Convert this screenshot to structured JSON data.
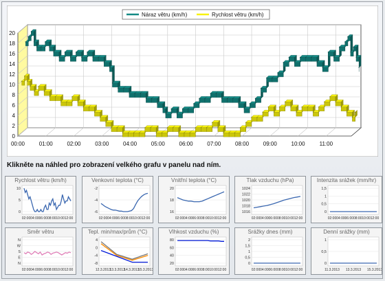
{
  "chart_data": [
    {
      "type": "line",
      "style": "3d-ribbon",
      "legend_placement": "top",
      "grid": true,
      "x_ticks": [
        "00:00",
        "01:00",
        "02:00",
        "03:00",
        "04:00",
        "05:00",
        "06:00",
        "07:00",
        "08:00",
        "09:00",
        "10:00",
        "11:00"
      ],
      "y_ticks": [
        "0",
        "2",
        "4",
        "6",
        "8",
        "10",
        "12",
        "14",
        "16",
        "18",
        "20"
      ],
      "ylim": [
        0,
        20
      ],
      "xlim": [
        0,
        11.9
      ],
      "series": [
        {
          "name": "Náraz větru (km/h)",
          "color": "#148a85",
          "points": [
            [
              0,
              17
            ],
            [
              0.1,
              18
            ],
            [
              0.2,
              19
            ],
            [
              0.3,
              17
            ],
            [
              0.4,
              16
            ],
            [
              0.55,
              16
            ],
            [
              0.7,
              17
            ],
            [
              0.85,
              16
            ],
            [
              1.0,
              15
            ],
            [
              1.2,
              14
            ],
            [
              1.4,
              15
            ],
            [
              1.6,
              14
            ],
            [
              1.8,
              15
            ],
            [
              2.0,
              14
            ],
            [
              2.2,
              15
            ],
            [
              2.4,
              14
            ],
            [
              2.6,
              14
            ],
            [
              2.8,
              13
            ],
            [
              3.0,
              12
            ],
            [
              3.1,
              9
            ],
            [
              3.3,
              8
            ],
            [
              3.5,
              8
            ],
            [
              3.7,
              7
            ],
            [
              3.9,
              7
            ],
            [
              4.1,
              7
            ],
            [
              4.3,
              6
            ],
            [
              4.5,
              6
            ],
            [
              4.7,
              5
            ],
            [
              4.9,
              4
            ],
            [
              5.0,
              3
            ],
            [
              5.2,
              4
            ],
            [
              5.4,
              3
            ],
            [
              5.6,
              4
            ],
            [
              5.8,
              4
            ],
            [
              6.0,
              5
            ],
            [
              6.2,
              6
            ],
            [
              6.4,
              6
            ],
            [
              6.6,
              7
            ],
            [
              6.8,
              7
            ],
            [
              7.0,
              6
            ],
            [
              7.2,
              6
            ],
            [
              7.4,
              6
            ],
            [
              7.6,
              5
            ],
            [
              7.8,
              4
            ],
            [
              8.0,
              5
            ],
            [
              8.2,
              6
            ],
            [
              8.4,
              8
            ],
            [
              8.6,
              10
            ],
            [
              8.8,
              10
            ],
            [
              9.0,
              11
            ],
            [
              9.2,
              13
            ],
            [
              9.4,
              14
            ],
            [
              9.6,
              13
            ],
            [
              9.8,
              14
            ],
            [
              10.0,
              14
            ],
            [
              10.2,
              14
            ],
            [
              10.4,
              13
            ],
            [
              10.6,
              12
            ],
            [
              10.8,
              15
            ],
            [
              11.0,
              14
            ],
            [
              11.2,
              16
            ],
            [
              11.4,
              17
            ],
            [
              11.5,
              18
            ],
            [
              11.6,
              15
            ],
            [
              11.7,
              16
            ],
            [
              11.8,
              14
            ],
            [
              11.9,
              12
            ]
          ]
        },
        {
          "name": "Rychlost větru (km/h)",
          "color": "#f7f20e",
          "points": [
            [
              0,
              10
            ],
            [
              0.1,
              11
            ],
            [
              0.2,
              10
            ],
            [
              0.3,
              9
            ],
            [
              0.45,
              8
            ],
            [
              0.6,
              9
            ],
            [
              0.8,
              8
            ],
            [
              1.0,
              7
            ],
            [
              1.2,
              7
            ],
            [
              1.4,
              6
            ],
            [
              1.6,
              6
            ],
            [
              1.8,
              7
            ],
            [
              2.0,
              6
            ],
            [
              2.2,
              5
            ],
            [
              2.4,
              5
            ],
            [
              2.6,
              4
            ],
            [
              2.8,
              3
            ],
            [
              3.0,
              2
            ],
            [
              3.2,
              1
            ],
            [
              3.4,
              1
            ],
            [
              3.6,
              0
            ],
            [
              3.8,
              0
            ],
            [
              4.0,
              0
            ],
            [
              4.2,
              0
            ],
            [
              4.4,
              1
            ],
            [
              4.6,
              1
            ],
            [
              4.8,
              0
            ],
            [
              5.0,
              0
            ],
            [
              5.2,
              1
            ],
            [
              5.4,
              1
            ],
            [
              5.6,
              0
            ],
            [
              5.8,
              0
            ],
            [
              6.0,
              0
            ],
            [
              6.2,
              1
            ],
            [
              6.4,
              1
            ],
            [
              6.6,
              1
            ],
            [
              6.8,
              2
            ],
            [
              7.0,
              1
            ],
            [
              7.2,
              0
            ],
            [
              7.4,
              0
            ],
            [
              7.6,
              0
            ],
            [
              7.8,
              1
            ],
            [
              8.0,
              2
            ],
            [
              8.2,
              3
            ],
            [
              8.4,
              3
            ],
            [
              8.6,
              4
            ],
            [
              8.8,
              5
            ],
            [
              9.0,
              4
            ],
            [
              9.2,
              5
            ],
            [
              9.4,
              6
            ],
            [
              9.6,
              5
            ],
            [
              9.8,
              4
            ],
            [
              10.0,
              5
            ],
            [
              10.2,
              5
            ],
            [
              10.4,
              4
            ],
            [
              10.6,
              5
            ],
            [
              10.8,
              6
            ],
            [
              11.0,
              7
            ],
            [
              11.2,
              6
            ],
            [
              11.4,
              5
            ],
            [
              11.6,
              4
            ],
            [
              11.8,
              3
            ],
            [
              11.9,
              4
            ]
          ]
        }
      ]
    },
    {
      "type": "line",
      "title": "Rychlost větru (km/h)",
      "y_ticks": [
        "10",
        "5",
        "0"
      ],
      "x_ticks": [
        "02:00",
        "04:00",
        "06:00",
        "08:00",
        "10:00",
        "12:00"
      ],
      "series": [
        {
          "color": "#3a67b0",
          "values": [
            11,
            9,
            10,
            8,
            6,
            7,
            5,
            3,
            1,
            0,
            0,
            1,
            0,
            0,
            1,
            0,
            0,
            2,
            3,
            1,
            1,
            4,
            3,
            5,
            6,
            3,
            4,
            1,
            2,
            3,
            3,
            5,
            8,
            6,
            4,
            5,
            5,
            7,
            6,
            5
          ]
        }
      ]
    },
    {
      "type": "line",
      "title": "Venkovní teplota (°C)",
      "y_ticks": [
        "-2",
        "-4",
        "-6"
      ],
      "x_ticks": [
        "02:00",
        "04:00",
        "06:00",
        "08:00",
        "10:00",
        "12:00"
      ],
      "series": [
        {
          "color": "#3a67b0",
          "values": [
            -5,
            -5.3,
            -5.6,
            -5.8,
            -6,
            -6.2,
            -6.3,
            -6.3,
            -6.4,
            -6.5,
            -6.5,
            -6.6,
            -6.6,
            -6.6,
            -6.5,
            -6.4,
            -6,
            -5.2,
            -4.5,
            -4,
            -3.6,
            -3.3,
            -3.1,
            -3
          ]
        }
      ]
    },
    {
      "type": "line",
      "title": "Vnitřní teplota (°C)",
      "y_ticks": [
        "20",
        "18",
        "16"
      ],
      "x_ticks": [
        "02:00",
        "04:00",
        "06:00",
        "08:00",
        "10:00",
        "12:00"
      ],
      "series": [
        {
          "color": "#3a67b0",
          "values": [
            18.4,
            18.2,
            18,
            17.9,
            17.8,
            17.8,
            17.7,
            17.7,
            17.7,
            17.8,
            18,
            18.2,
            18.4,
            18.6,
            18.8,
            19,
            19.2,
            19.4
          ]
        }
      ]
    },
    {
      "type": "line",
      "title": "Tlak vzduchu (hPa)",
      "y_ticks": [
        "1024",
        "1022",
        "1020",
        "1018",
        "1016"
      ],
      "x_ticks": [
        "02:00",
        "04:00",
        "06:00",
        "08:00",
        "10:00",
        "12:00"
      ],
      "series": [
        {
          "color": "#3a67b0",
          "values": [
            1017.3,
            1017.5,
            1017.7,
            1017.9,
            1018.1,
            1018.4,
            1018.7,
            1019.1,
            1019.5,
            1019.9,
            1020.2,
            1020.5,
            1020.8,
            1021,
            1021.2
          ]
        }
      ]
    },
    {
      "type": "line",
      "title": "Intenzita srážek (mm/hr)",
      "y_ticks": [
        "1,5",
        "1",
        "0,5",
        "0"
      ],
      "x_ticks": [
        "02:00",
        "04:00",
        "06:00",
        "08:00",
        "10:00",
        "12:00"
      ],
      "series": [
        {
          "color": "#3a67b0",
          "values": [
            0,
            0,
            0,
            0,
            0,
            0,
            0,
            0,
            0,
            0
          ]
        }
      ]
    },
    {
      "type": "line",
      "title": "Směr větru",
      "y_ticks": [
        "N",
        "W",
        "S",
        "E",
        "N"
      ],
      "x_ticks": [
        "02:00",
        "04:00",
        "06:00",
        "08:00",
        "10:00",
        "12:00"
      ],
      "series": [
        {
          "color": "#e080b8",
          "values": [
            2.2,
            2.4,
            2.1,
            2.2,
            2.5,
            2.3,
            2,
            2.2,
            2.4,
            2.1,
            2.6,
            2.4,
            2.3,
            2.1,
            2.2,
            2.5,
            2.3,
            2.2,
            2.1,
            2.2,
            2.4,
            2.6,
            2.4,
            2.2,
            2.3,
            2.1,
            2.2
          ]
        }
      ]
    },
    {
      "type": "line",
      "title": "Tepl. min/max/prům (°C)",
      "y_ticks": [
        "4",
        "0",
        "-4",
        "-8"
      ],
      "x_ticks": [
        "12.3.2013",
        "13.3.2013",
        "14.3.2013",
        "15.3.2013"
      ],
      "series": [
        {
          "color": "#7a7a7a",
          "values": [
            3,
            -3.5,
            -6,
            -3.2
          ]
        },
        {
          "color": "#ff8c00",
          "values": [
            2,
            -4,
            -6.5,
            -4
          ]
        },
        {
          "color": "#0018d8",
          "values": [
            -1.5,
            -4.5,
            -7.5,
            -7.5
          ]
        }
      ]
    },
    {
      "type": "line",
      "title": "Vlhkost vzduchu (%)",
      "y_ticks": [
        "80",
        "60",
        "40",
        "20"
      ],
      "x_ticks": [
        "02:00",
        "04:00",
        "06:00",
        "08:00",
        "10:00",
        "12:00"
      ],
      "series": [
        {
          "color": "#0018d8",
          "values": [
            78,
            78,
            78,
            78,
            78,
            78,
            78,
            78,
            78,
            78,
            78,
            78,
            77,
            77,
            77,
            77,
            76,
            76
          ]
        }
      ]
    },
    {
      "type": "line",
      "title": "Srážky dnes (mm)",
      "y_ticks": [
        "2",
        "1,5",
        "1",
        "0,5",
        "0"
      ],
      "x_ticks": [
        "02:00",
        "04:00",
        "06:00",
        "08:00",
        "10:00",
        "12:00"
      ],
      "series": [
        {
          "color": "#3a67b0",
          "values": [
            0,
            0,
            0,
            0,
            0,
            0,
            0,
            0,
            0,
            0
          ]
        }
      ]
    },
    {
      "type": "line",
      "title": "Denní srážky (mm)",
      "y_ticks": [
        "1",
        "0,5",
        "0"
      ],
      "x_ticks": [
        "11.3.2013",
        "13.3.2013",
        "15.3.2013"
      ],
      "series": [
        {
          "color": "#3a67b0",
          "values": [
            0,
            0,
            0,
            0,
            0
          ]
        }
      ]
    }
  ],
  "page": {
    "instruction": "Klikněte na náhled pro zobrazení velkého grafu v panelu nad ním."
  }
}
